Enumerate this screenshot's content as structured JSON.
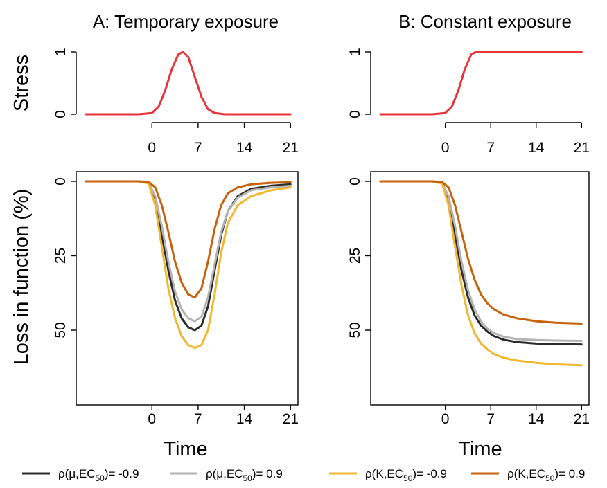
{
  "chart_data": [
    {
      "id": "A-stress",
      "type": "line",
      "title": "A: Temporary exposure",
      "ylabel": "Stress",
      "xlabel": "",
      "xlim": [
        -10,
        21.5
      ],
      "ylim": [
        0,
        1
      ],
      "x_ticks": [
        "0",
        "7",
        "14",
        "21"
      ],
      "y_ticks": [
        "0",
        "1"
      ],
      "grid": false,
      "series": [
        {
          "color": "#e8333a",
          "x": [
            -10,
            -2,
            0,
            1,
            2,
            3,
            4,
            4.7,
            5.5,
            6.5,
            7.5,
            8.5,
            9.5,
            11,
            21
          ],
          "values": [
            0,
            0,
            0.02,
            0.12,
            0.38,
            0.72,
            0.96,
            1.0,
            0.92,
            0.6,
            0.28,
            0.08,
            0.02,
            0,
            0
          ]
        }
      ]
    },
    {
      "id": "B-stress",
      "type": "line",
      "title": "B: Constant exposure",
      "ylabel": "",
      "xlabel": "",
      "xlim": [
        -10,
        21.5
      ],
      "ylim": [
        0,
        1
      ],
      "x_ticks": [
        "0",
        "7",
        "14",
        "21"
      ],
      "y_ticks": [
        "0",
        "1"
      ],
      "grid": false,
      "series": [
        {
          "color": "#e8333a",
          "x": [
            -10,
            -2,
            0,
            1,
            2,
            3,
            4,
            4.7,
            5.5,
            21
          ],
          "values": [
            0,
            0,
            0.02,
            0.12,
            0.38,
            0.72,
            0.96,
            1.0,
            1.0,
            1.0
          ]
        }
      ]
    },
    {
      "id": "A-loss",
      "type": "line",
      "title": "",
      "ylabel": "Loss in function (%)",
      "xlabel": "Time",
      "xlim": [
        -10,
        21.5
      ],
      "ylim": [
        0,
        68
      ],
      "y_inverted": true,
      "x_ticks": [
        "0",
        "7",
        "14",
        "21"
      ],
      "y_ticks": [
        "0",
        "25",
        "50"
      ],
      "grid": false,
      "series": [
        {
          "legend_index": 0,
          "color": "#2b2b2b",
          "x": [
            -10,
            -2,
            -0.5,
            0.5,
            1.5,
            2.5,
            3.5,
            4.5,
            5.5,
            6.5,
            7.5,
            8.5,
            9.5,
            10.5,
            11.5,
            13,
            15,
            18,
            21
          ],
          "values": [
            0,
            0,
            0.5,
            6,
            18,
            30,
            40,
            46,
            49,
            50,
            48.5,
            42,
            30,
            18,
            10,
            5,
            2.5,
            1.5,
            1
          ]
        },
        {
          "legend_index": 1,
          "color": "#b3b3b3",
          "x": [
            -10,
            -2,
            -0.5,
            0.5,
            1.5,
            2.5,
            3.5,
            4.5,
            5.5,
            6.5,
            7.5,
            8.5,
            9.5,
            10.5,
            11.5,
            13,
            15,
            18,
            21
          ],
          "values": [
            0,
            0,
            0.5,
            5,
            15,
            27,
            37,
            43,
            46,
            47,
            45.5,
            39,
            28,
            17,
            10,
            5.5,
            3,
            2,
            1.5
          ]
        },
        {
          "legend_index": 2,
          "color": "#f0b72f",
          "x": [
            -10,
            -2,
            -0.5,
            0.5,
            1.5,
            2.5,
            3.5,
            4.5,
            5.5,
            6.5,
            7.5,
            8.5,
            9.5,
            10.5,
            11.5,
            13,
            15,
            18,
            21
          ],
          "values": [
            0,
            0,
            0.7,
            8,
            22,
            36,
            46,
            52,
            55,
            56,
            55,
            50,
            38,
            24,
            14,
            8,
            5,
            3,
            2
          ]
        },
        {
          "legend_index": 3,
          "color": "#c7610a",
          "x": [
            -10,
            -2,
            -0.5,
            0.5,
            1.5,
            2.5,
            3.5,
            4.5,
            5.5,
            6.5,
            7.5,
            8.5,
            9.5,
            10.5,
            11.5,
            13,
            15,
            18,
            21
          ],
          "values": [
            0,
            0,
            0.2,
            2,
            8,
            17,
            27,
            34,
            38,
            39,
            36,
            27,
            16,
            8,
            4,
            2,
            1,
            0.5,
            0.3
          ]
        }
      ]
    },
    {
      "id": "B-loss",
      "type": "line",
      "title": "",
      "ylabel": "",
      "xlabel": "Time",
      "xlim": [
        -10,
        21.5
      ],
      "ylim": [
        0,
        68
      ],
      "y_inverted": true,
      "x_ticks": [
        "0",
        "7",
        "14",
        "21"
      ],
      "y_ticks": [
        "0",
        "25",
        "50"
      ],
      "grid": false,
      "series": [
        {
          "legend_index": 0,
          "color": "#2b2b2b",
          "x": [
            -10,
            -2,
            -0.5,
            0.5,
            1.5,
            2.5,
            3.5,
            4.5,
            5.5,
            6.5,
            7.5,
            9,
            11,
            14,
            17,
            21
          ],
          "values": [
            0,
            0,
            0.5,
            6,
            18,
            30,
            39,
            45,
            48.5,
            50.5,
            52,
            53.2,
            54,
            54.5,
            54.7,
            54.8
          ]
        },
        {
          "legend_index": 1,
          "color": "#b3b3b3",
          "x": [
            -10,
            -2,
            -0.5,
            0.5,
            1.5,
            2.5,
            3.5,
            4.5,
            5.5,
            6.5,
            7.5,
            9,
            11,
            14,
            17,
            21
          ],
          "values": [
            0,
            0,
            0.5,
            5,
            15,
            27,
            36.5,
            43,
            47,
            49.5,
            51,
            52.2,
            53,
            53.3,
            53.5,
            53.6
          ]
        },
        {
          "legend_index": 2,
          "color": "#f0b72f",
          "x": [
            -10,
            -2,
            -0.5,
            0.5,
            1.5,
            2.5,
            3.5,
            4.5,
            5.5,
            6.5,
            7.5,
            9,
            11,
            14,
            17,
            21
          ],
          "values": [
            0,
            0,
            0.7,
            8,
            22,
            35,
            45,
            51,
            54.5,
            56.5,
            58,
            59.3,
            60.2,
            61,
            61.5,
            61.8
          ]
        },
        {
          "legend_index": 3,
          "color": "#c7610a",
          "x": [
            -10,
            -2,
            -0.5,
            0.5,
            1.5,
            2.5,
            3.5,
            4.5,
            5.5,
            6.5,
            7.5,
            9,
            11,
            14,
            17,
            21
          ],
          "values": [
            0,
            0,
            0.2,
            2,
            8,
            17,
            26,
            33,
            38,
            41,
            43,
            44.8,
            46,
            47,
            47.5,
            47.8
          ]
        }
      ]
    }
  ],
  "legend": {
    "placement": "bottom",
    "items": [
      {
        "prefix": "ρ(μ,EC",
        "sub": "50",
        "suffix": ")= -0.9",
        "color": "#2b2b2b"
      },
      {
        "prefix": "ρ(μ,EC",
        "sub": "50",
        "suffix": ")= 0.9",
        "color": "#b3b3b3"
      },
      {
        "prefix": "ρ(K,EC",
        "sub": "50",
        "suffix": ")= -0.9",
        "color": "#f0b72f"
      },
      {
        "prefix": "ρ(K,EC",
        "sub": "50",
        "suffix": ")= 0.9",
        "color": "#c7610a"
      }
    ]
  }
}
